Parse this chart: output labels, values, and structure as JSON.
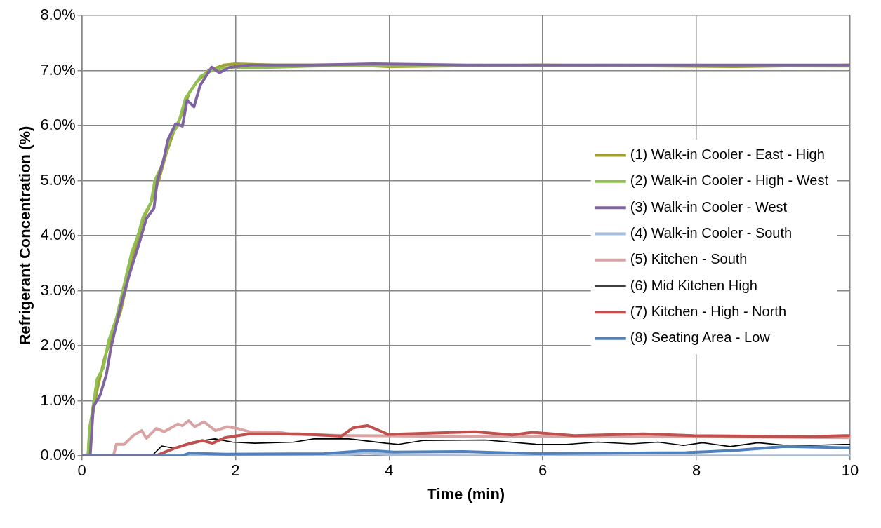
{
  "chart_data": {
    "type": "line",
    "xlabel": "Time (min)",
    "ylabel": "Refrigerant Concentration (%)",
    "xlim": [
      0,
      10
    ],
    "xticks": [
      0,
      2,
      4,
      6,
      8,
      10
    ],
    "ylim": [
      0,
      8
    ],
    "yticks": [
      {
        "value": 0,
        "label": "0.0%"
      },
      {
        "value": 1,
        "label": "1.0%"
      },
      {
        "value": 2,
        "label": "2.0%"
      },
      {
        "value": 3,
        "label": "3.0%"
      },
      {
        "value": 4,
        "label": "4.0%"
      },
      {
        "value": 5,
        "label": "5.0%"
      },
      {
        "value": 6,
        "label": "6.0%"
      },
      {
        "value": 7,
        "label": "7.0%"
      },
      {
        "value": 8,
        "label": "8.0%"
      }
    ],
    "grid": true,
    "legend": "right",
    "marker": "none",
    "line_style": "solid",
    "series": [
      {
        "name": "(1) Walk-in Cooler - East - High",
        "color": "#a0a030",
        "x": [
          0,
          0.08,
          0.12,
          0.2,
          0.3,
          0.4,
          0.5,
          0.6,
          0.7,
          0.8,
          0.9,
          1.0,
          1.1,
          1.2,
          1.3,
          1.4,
          1.5,
          1.65,
          1.85,
          2.0,
          2.5,
          3.5,
          4,
          6,
          8.5,
          10
        ],
        "values": [
          0,
          0,
          0.6,
          1.2,
          1.8,
          2.2,
          2.6,
          3.2,
          3.8,
          4.3,
          4.6,
          5.0,
          5.5,
          5.9,
          6.2,
          6.6,
          6.8,
          7.0,
          7.1,
          7.12,
          7.1,
          7.1,
          7.07,
          7.1,
          7.07,
          7.1
        ]
      },
      {
        "name": "(2) Walk-in Cooler - High - West",
        "color": "#92c050",
        "x": [
          0,
          0.08,
          0.1,
          0.13,
          0.2,
          0.28,
          0.35,
          0.45,
          0.55,
          0.65,
          0.73,
          0.8,
          0.9,
          0.95,
          1.05,
          1.15,
          1.25,
          1.35,
          1.45,
          1.55,
          1.7,
          1.85,
          2.0,
          2.3,
          3,
          4,
          10
        ],
        "values": [
          0,
          0,
          0.5,
          0.75,
          1.4,
          1.6,
          2.1,
          2.5,
          3.1,
          3.7,
          4.0,
          4.35,
          4.6,
          5.0,
          5.3,
          5.8,
          6.0,
          6.5,
          6.7,
          6.9,
          7.0,
          7.05,
          7.05,
          7.05,
          7.08,
          7.1,
          7.08
        ]
      },
      {
        "name": "(3) Walk-in Cooler - West",
        "color": "#8064a2",
        "x": [
          0,
          0.11,
          0.15,
          0.24,
          0.32,
          0.38,
          0.5,
          0.62,
          0.74,
          0.84,
          0.94,
          0.98,
          1.07,
          1.12,
          1.22,
          1.31,
          1.37,
          1.46,
          1.54,
          1.69,
          1.79,
          1.93,
          2.19,
          3,
          3.8,
          5,
          7,
          10
        ],
        "values": [
          0,
          0.02,
          0.89,
          1.11,
          1.48,
          1.97,
          2.69,
          3.3,
          3.83,
          4.31,
          4.5,
          4.98,
          5.41,
          5.74,
          6.03,
          5.99,
          6.46,
          6.34,
          6.73,
          7.06,
          6.96,
          7.06,
          7.1,
          7.1,
          7.12,
          7.1,
          7.1,
          7.1
        ]
      },
      {
        "name": "(4) Walk-in Cooler - South",
        "color": "#a9bcd9",
        "x": [
          0,
          3.2,
          3.7,
          4.2,
          5,
          10
        ],
        "values": [
          0,
          0,
          0.05,
          0.01,
          0,
          0
        ]
      },
      {
        "name": "(5) Kitchen - South",
        "color": "#d9a3a3",
        "x": [
          0,
          0.41,
          0.45,
          0.55,
          0.67,
          0.78,
          0.84,
          0.97,
          1.07,
          1.25,
          1.31,
          1.39,
          1.47,
          1.59,
          1.74,
          1.89,
          2.02,
          2.18,
          2.57,
          2.73,
          3.5,
          4.5,
          6,
          8,
          10
        ],
        "values": [
          0,
          0,
          0.21,
          0.21,
          0.37,
          0.46,
          0.32,
          0.5,
          0.44,
          0.58,
          0.55,
          0.64,
          0.53,
          0.62,
          0.46,
          0.53,
          0.5,
          0.44,
          0.43,
          0.39,
          0.37,
          0.36,
          0.36,
          0.35,
          0.33
        ]
      },
      {
        "name": "(6) Mid Kitchen High",
        "color": "#000000",
        "x": [
          0,
          0.91,
          1.04,
          1.2,
          1.44,
          1.73,
          1.96,
          2.25,
          2.76,
          3.02,
          3.48,
          3.96,
          4.12,
          4.44,
          5.25,
          5.92,
          6.31,
          6.71,
          7.15,
          7.5,
          7.83,
          8.08,
          8.44,
          8.8,
          9.25,
          9.92,
          10
        ],
        "values": [
          0,
          0,
          0.18,
          0.14,
          0.25,
          0.31,
          0.25,
          0.23,
          0.25,
          0.31,
          0.31,
          0.23,
          0.21,
          0.28,
          0.29,
          0.21,
          0.21,
          0.25,
          0.22,
          0.25,
          0.19,
          0.24,
          0.17,
          0.24,
          0.18,
          0.21,
          0.21
        ]
      },
      {
        "name": "(7) Kitchen - High - North",
        "color": "#c0504d",
        "x": [
          0,
          0.96,
          1.21,
          1.37,
          1.57,
          1.7,
          1.86,
          2.18,
          2.83,
          3.38,
          3.53,
          3.72,
          3.84,
          3.99,
          4.44,
          5.12,
          5.6,
          5.86,
          6.41,
          7.31,
          7.96,
          9.48,
          9.92,
          10
        ],
        "values": [
          0,
          0,
          0.14,
          0.21,
          0.28,
          0.23,
          0.33,
          0.4,
          0.4,
          0.36,
          0.51,
          0.55,
          0.48,
          0.39,
          0.41,
          0.44,
          0.38,
          0.43,
          0.37,
          0.4,
          0.37,
          0.35,
          0.37,
          0.37
        ]
      },
      {
        "name": "(8) Seating Area - Low",
        "color": "#4f81bd",
        "x": [
          0,
          1.3,
          1.4,
          1.86,
          3.15,
          3.73,
          4.06,
          4.96,
          5.92,
          7.86,
          8.51,
          9.15,
          9.92,
          10
        ],
        "values": [
          0,
          0,
          0.05,
          0.03,
          0.04,
          0.1,
          0.07,
          0.08,
          0.04,
          0.06,
          0.1,
          0.17,
          0.15,
          0.15
        ]
      }
    ]
  }
}
